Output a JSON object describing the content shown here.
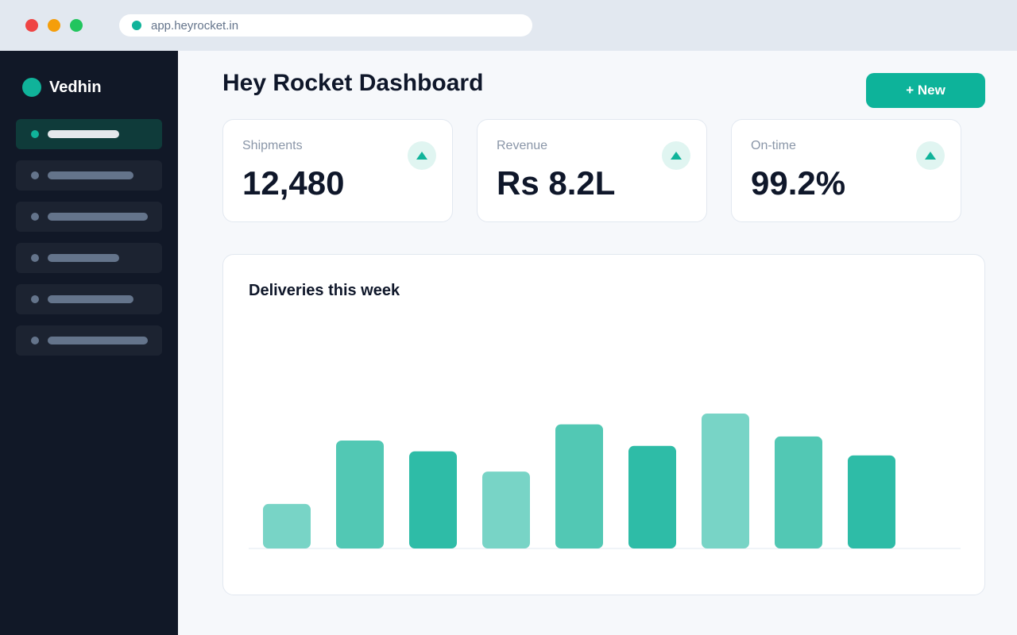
{
  "browser": {
    "url": "app.heyrocket.in",
    "secure_indicator_color": "#10b39a"
  },
  "sidebar": {
    "brand_name": "Vedhin",
    "brand_color": "#10b39a",
    "items": [
      {
        "active": true
      },
      {
        "active": false
      },
      {
        "active": false
      },
      {
        "active": false
      },
      {
        "active": false
      },
      {
        "active": false
      }
    ]
  },
  "header": {
    "title": "Hey Rocket Dashboard",
    "new_button_label": "+ New",
    "accent_color": "#0db39a"
  },
  "stats": [
    {
      "label": "Shipments",
      "value": "12,480",
      "trend_icon": "trend-up-icon"
    },
    {
      "label": "Revenue",
      "value": "Rs 8.2L",
      "trend_icon": "trend-up-icon"
    },
    {
      "label": "On-time",
      "value": "99.2%",
      "trend_icon": "trend-up-icon"
    }
  ],
  "chart": {
    "title": "Deliveries this week"
  },
  "chart_data": {
    "type": "bar",
    "title": "Deliveries this week",
    "xlabel": "",
    "ylabel": "",
    "ylim": [
      0,
      100
    ],
    "grid": false,
    "values": [
      33,
      80,
      72,
      57,
      92,
      76,
      100,
      83,
      69
    ],
    "colors": [
      "#78d4c6",
      "#52c8b4",
      "#2ebca7",
      "#78d4c6",
      "#52c8b4",
      "#2ebca7",
      "#78d4c6",
      "#52c8b4",
      "#2ebca7"
    ]
  }
}
